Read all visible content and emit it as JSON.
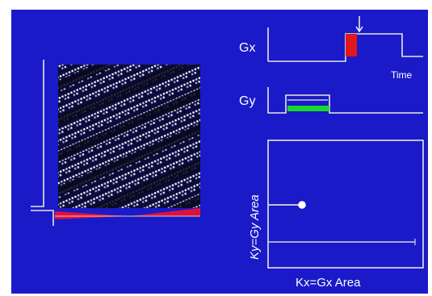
{
  "colors": {
    "background": "#1a1ac8",
    "line": "#e6e6e6",
    "gx_lobe": "#e01818",
    "gy_lobe": "#18d830",
    "gradient_wedge": "#e0103c",
    "kspace_dot": "#ffffff"
  },
  "labels": {
    "gx": "Gx",
    "gy": "Gy",
    "time": "Time",
    "ky_axis": "Ky=Gy Area",
    "kx_axis": "Kx=Gx Area"
  },
  "icons": {
    "time_marker": "down-arrow-icon"
  },
  "image_panel": {
    "pattern": "diagonal-stripe-texture"
  }
}
